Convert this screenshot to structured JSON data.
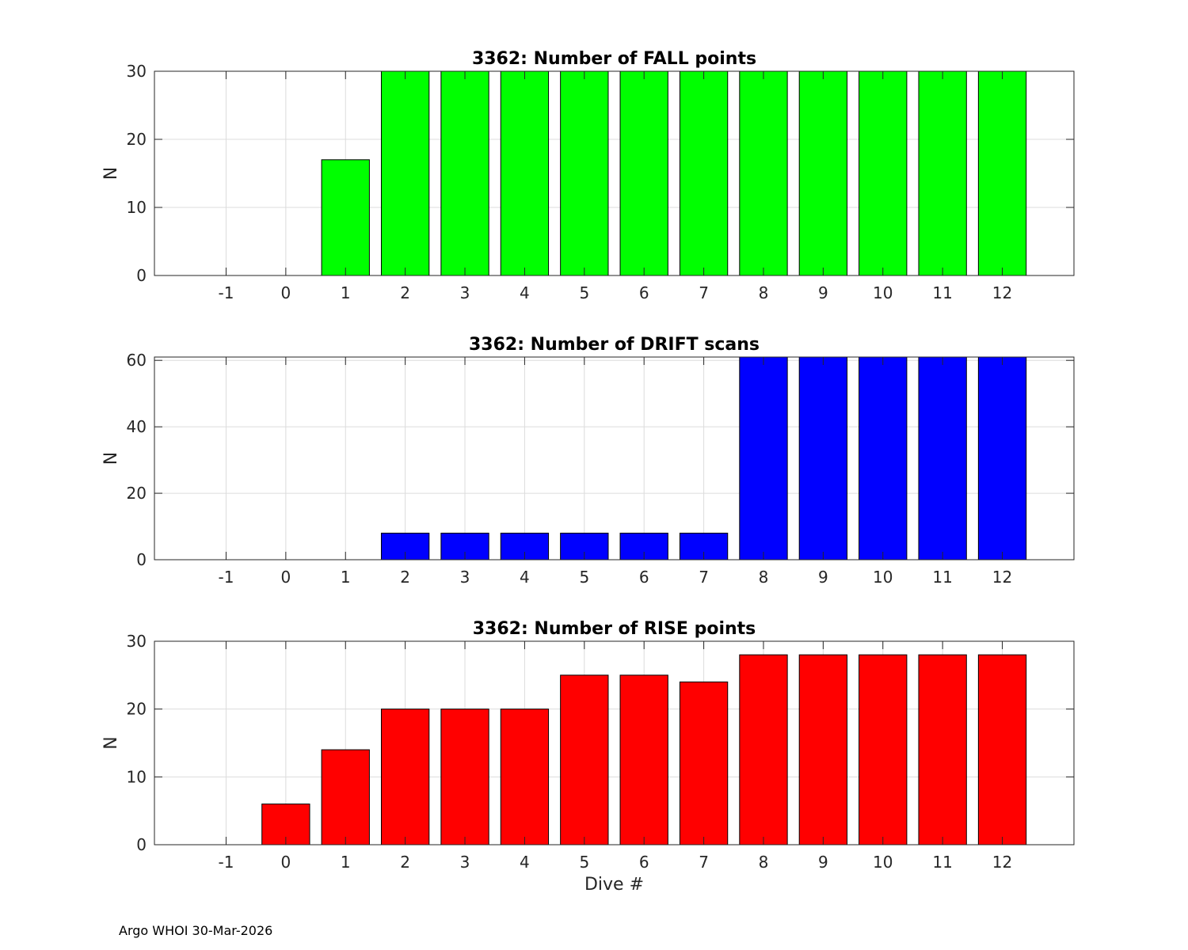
{
  "chart_data": [
    {
      "type": "bar",
      "title": "3362: Number of FALL points",
      "xlabel": "",
      "ylabel": "N",
      "categories": [
        "-1",
        "0",
        "1",
        "2",
        "3",
        "4",
        "5",
        "6",
        "7",
        "8",
        "9",
        "10",
        "11",
        "12"
      ],
      "values": [
        0,
        0,
        17,
        30,
        30,
        30,
        30,
        30,
        30,
        30,
        30,
        30,
        30,
        30
      ],
      "ylim": [
        0,
        30
      ],
      "yticks": [
        0,
        10,
        20,
        30
      ],
      "xlim": [
        -2.2,
        13.2
      ],
      "grid": true,
      "color": "#00ff00"
    },
    {
      "type": "bar",
      "title": "3362: Number of DRIFT scans",
      "xlabel": "",
      "ylabel": "N",
      "categories": [
        "-1",
        "0",
        "1",
        "2",
        "3",
        "4",
        "5",
        "6",
        "7",
        "8",
        "9",
        "10",
        "11",
        "12"
      ],
      "values": [
        0,
        0,
        0,
        8,
        8,
        8,
        8,
        8,
        8,
        61,
        61,
        61,
        61,
        61
      ],
      "ylim": [
        0,
        61
      ],
      "yticks": [
        0,
        20,
        40,
        60
      ],
      "xlim": [
        -2.2,
        13.2
      ],
      "grid": true,
      "color": "#0000ff"
    },
    {
      "type": "bar",
      "title": "3362: Number of RISE points",
      "xlabel": "Dive #",
      "ylabel": "N",
      "categories": [
        "-1",
        "0",
        "1",
        "2",
        "3",
        "4",
        "5",
        "6",
        "7",
        "8",
        "9",
        "10",
        "11",
        "12"
      ],
      "values": [
        0,
        6,
        14,
        20,
        20,
        20,
        25,
        25,
        24,
        28,
        28,
        28,
        28,
        28
      ],
      "ylim": [
        0,
        30
      ],
      "yticks": [
        0,
        10,
        20,
        30
      ],
      "xlim": [
        -2.2,
        13.2
      ],
      "grid": true,
      "color": "#ff0000"
    }
  ],
  "footer": "Argo WHOI 30-Mar-2026"
}
